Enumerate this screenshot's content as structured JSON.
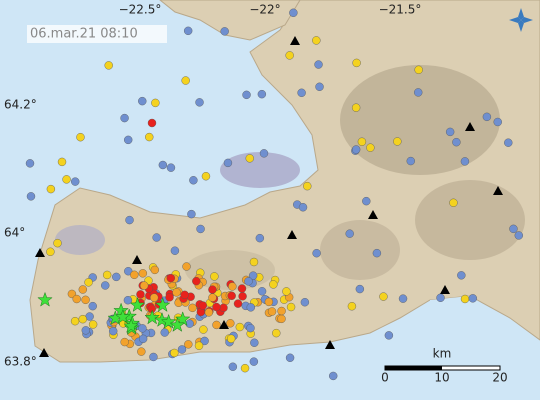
{
  "timestamp": "06.mar.21  08:10",
  "longitude_labels": [
    "−22.5°",
    "−22°",
    "−21.5°"
  ],
  "latitude_labels": [
    "64.2°",
    "64°",
    "63.8°"
  ],
  "scale_bar": {
    "unit": "km",
    "labels": [
      "0",
      "10",
      "20"
    ]
  }
}
